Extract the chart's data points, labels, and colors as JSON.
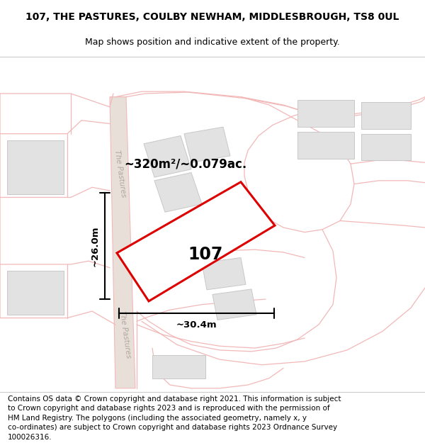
{
  "title_line1": "107, THE PASTURES, COULBY NEWHAM, MIDDLESBROUGH, TS8 0UL",
  "title_line2": "Map shows position and indicative extent of the property.",
  "footer_text": "Contains OS data © Crown copyright and database right 2021. This information is subject\nto Crown copyright and database rights 2023 and is reproduced with the permission of\nHM Land Registry. The polygons (including the associated geometry, namely x, y\nco-ordinates) are subject to Crown copyright and database rights 2023 Ordnance Survey\n100026316.",
  "background_color": "#ffffff",
  "map_background": "#f8f6f3",
  "road_color": "#f2b8b8",
  "road_fill": "#f0e8e8",
  "building_fill": "#e2e2e2",
  "building_edge": "#c8c8c8",
  "parcel_color": "#f0a0a0",
  "highlight_fill": "#ffffff",
  "highlight_edge": "#dd0000",
  "highlight_lw": 2.2,
  "street_label": "The Pastures",
  "area_label": "~320m²/~0.079ac.",
  "plot_label": "107",
  "dim_width": "~30.4m",
  "dim_height": "~26.0m",
  "title_fontsize": 10,
  "subtitle_fontsize": 9,
  "footer_fontsize": 7.5
}
